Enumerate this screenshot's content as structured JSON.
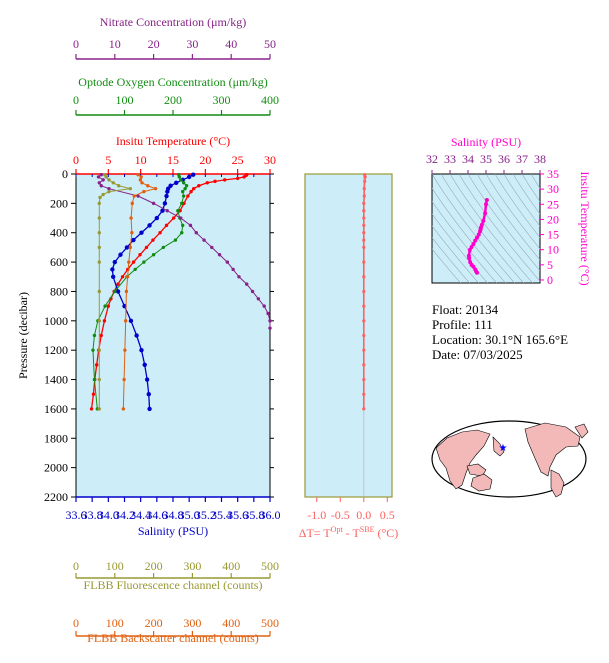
{
  "colors": {
    "plot_bg": "#cdeef9",
    "temperature": "#ff0000",
    "salinity": "#0000cc",
    "oxygen": "#118c11",
    "nitrate": "#882288",
    "fluorescence": "#999933",
    "backscatter": "#e06010",
    "delta_t": "#ff6060",
    "ts": "#ff00cc"
  },
  "chart_data": [
    {
      "id": "profiles",
      "type": "line",
      "ylabel": "Pressure (decibar)",
      "ylim": [
        0,
        2200
      ],
      "y_ticks": [
        0,
        200,
        400,
        600,
        800,
        1000,
        1200,
        1400,
        1600,
        1800,
        2000,
        2200
      ],
      "axes": {
        "nitrate": {
          "label": "Nitrate Concentration (μm/kg)",
          "range": [
            0,
            50
          ],
          "ticks": [
            0,
            10,
            20,
            30,
            40,
            50
          ]
        },
        "oxygen": {
          "label": "Optode Oxygen Concentration (μm/kg)",
          "range": [
            0,
            400
          ],
          "ticks": [
            0,
            100,
            200,
            300,
            400
          ]
        },
        "temperature": {
          "label": "Insitu Temperature (°C)",
          "range": [
            0,
            30
          ],
          "ticks": [
            0,
            5,
            10,
            15,
            20,
            25,
            30
          ]
        },
        "salinity": {
          "label": "Salinity (PSU)",
          "range": [
            33.6,
            36.0
          ],
          "ticks": [
            "33.6",
            "33.8",
            "34.0",
            "34.2",
            "34.4",
            "34.6",
            "34.8",
            "35.0",
            "35.2",
            "35.4",
            "35.6",
            "35.8",
            "36.0"
          ]
        },
        "fluorescence": {
          "label": "FLBB Fluorescence channel (counts)",
          "range": [
            0,
            500
          ],
          "ticks": [
            0,
            100,
            200,
            300,
            400,
            500
          ]
        },
        "backscatter": {
          "label": "FLBB Backscatter channel (counts)",
          "range": [
            0,
            500
          ],
          "ticks": [
            0,
            100,
            200,
            300,
            400,
            500
          ]
        }
      },
      "series": [
        {
          "name": "temperature",
          "p": [
            5,
            10,
            20,
            30,
            40,
            50,
            60,
            80,
            100,
            120,
            150,
            200,
            250,
            300,
            350,
            400,
            450,
            500,
            550,
            600,
            650,
            700,
            750,
            800,
            850,
            900,
            1000,
            1100,
            1200,
            1300,
            1400,
            1500,
            1600
          ],
          "values": [
            26.4,
            26.3,
            26.0,
            25.0,
            23.0,
            21.5,
            20.3,
            19.0,
            18.2,
            17.8,
            17.3,
            16.7,
            16.1,
            15.1,
            14.0,
            13.0,
            11.9,
            10.9,
            9.9,
            8.9,
            8.0,
            7.2,
            6.5,
            5.9,
            5.4,
            5.0,
            4.4,
            3.9,
            3.5,
            3.2,
            2.9,
            2.7,
            2.4
          ]
        },
        {
          "name": "salinity",
          "p": [
            5,
            20,
            40,
            60,
            80,
            100,
            120,
            150,
            200,
            250,
            300,
            350,
            400,
            450,
            500,
            550,
            600,
            650,
            700,
            800,
            900,
            1000,
            1100,
            1200,
            1300,
            1400,
            1500,
            1600
          ],
          "values": [
            35.05,
            35.0,
            34.92,
            34.84,
            34.77,
            34.74,
            34.73,
            34.72,
            34.7,
            34.67,
            34.6,
            34.51,
            34.41,
            34.31,
            34.23,
            34.15,
            34.08,
            34.05,
            34.06,
            34.12,
            34.2,
            34.28,
            34.35,
            34.41,
            34.45,
            34.48,
            34.5,
            34.51
          ]
        },
        {
          "name": "oxygen",
          "p": [
            5,
            20,
            40,
            60,
            80,
            100,
            120,
            150,
            200,
            250,
            300,
            350,
            400,
            450,
            500,
            550,
            600,
            650,
            700,
            800,
            900,
            1000,
            1100,
            1200,
            1400,
            1600
          ],
          "values": [
            212,
            213,
            216,
            222,
            228,
            225,
            220,
            222,
            218,
            210,
            214,
            220,
            218,
            205,
            180,
            160,
            140,
            122,
            105,
            80,
            60,
            45,
            38,
            35,
            38,
            44
          ]
        },
        {
          "name": "nitrate",
          "p": [
            5,
            20,
            40,
            60,
            80,
            100,
            150,
            200,
            250,
            300,
            350,
            400,
            450,
            500,
            550,
            600,
            650,
            700,
            750,
            800,
            850,
            900,
            950,
            1000,
            1050
          ],
          "values": [
            6.5,
            5.8,
            7.0,
            6.0,
            6.5,
            8.5,
            16.0,
            20.0,
            23.5,
            27.0,
            29.5,
            31.0,
            33.0,
            35.0,
            37.0,
            39.0,
            40.5,
            42.0,
            44.0,
            45.5,
            47.0,
            48.5,
            49.5,
            50.0,
            50.0
          ]
        },
        {
          "name": "fluorescence",
          "p": [
            5,
            20,
            40,
            60,
            80,
            100,
            120,
            140,
            160,
            200,
            300,
            400,
            500,
            600,
            800,
            1000,
            1200,
            1400,
            1600
          ],
          "values": [
            74,
            78,
            85,
            96,
            110,
            140,
            85,
            70,
            62,
            60,
            60,
            60,
            60,
            60,
            60,
            60,
            60,
            60,
            60
          ]
        },
        {
          "name": "backscatter",
          "p": [
            5,
            20,
            40,
            60,
            80,
            100,
            120,
            150,
            200,
            300,
            400,
            500,
            600,
            700,
            800,
            1000,
            1200,
            1400,
            1600
          ],
          "values": [
            160,
            168,
            166,
            170,
            185,
            205,
            175,
            150,
            145,
            142,
            144,
            140,
            136,
            133,
            130,
            128,
            126,
            124,
            122
          ]
        }
      ]
    },
    {
      "id": "delta_t",
      "type": "line",
      "xlabel_main": "ΔT= T",
      "xlabel_sup1": "Opt",
      "xlabel_mid": " - T",
      "xlabel_sup2": "SBE",
      "xlabel_unit": " (°C)",
      "xlim": [
        -1.25,
        0.6
      ],
      "x_ticks": [
        "-1.0",
        "-0.5",
        "0.0",
        "0.5"
      ],
      "x_tick_values": [
        -1.0,
        -0.5,
        0.0,
        0.5
      ],
      "p": [
        5,
        20,
        50,
        100,
        150,
        200,
        250,
        300,
        350,
        400,
        450,
        500,
        600,
        700,
        800,
        900,
        1000,
        1100,
        1200,
        1300,
        1400,
        1500,
        1600
      ],
      "values": [
        0.02,
        0.03,
        0.02,
        0.01,
        0.01,
        0.0,
        0.0,
        0.0,
        0.0,
        0.0,
        0.0,
        0.0,
        0.0,
        0.0,
        0.0,
        0.0,
        0.0,
        0.0,
        0.0,
        0.0,
        0.0,
        0.0,
        0.0
      ]
    },
    {
      "id": "ts",
      "type": "scatter",
      "xlabel": "Salinity (PSU)",
      "ylabel": "Insitu Temperature (°C)",
      "xlim": [
        32,
        38
      ],
      "ylim": [
        -1,
        35
      ],
      "x_ticks": [
        32,
        33,
        34,
        35,
        36,
        37,
        38
      ],
      "y_ticks": [
        0,
        5,
        10,
        15,
        20,
        25,
        30,
        35
      ],
      "salinity": [
        35.05,
        35.0,
        34.95,
        34.85,
        34.77,
        34.72,
        34.7,
        34.67,
        34.6,
        34.5,
        34.4,
        34.3,
        34.2,
        34.1,
        34.05,
        34.06,
        34.12,
        34.2,
        34.3,
        34.4,
        34.45,
        34.5
      ],
      "temperature": [
        26.4,
        25.0,
        22.0,
        19.5,
        18.2,
        17.3,
        16.7,
        16.1,
        15.0,
        14.0,
        13.0,
        11.9,
        10.9,
        9.9,
        8.0,
        7.2,
        5.9,
        5.0,
        4.4,
        3.5,
        2.9,
        2.4
      ]
    }
  ],
  "info": {
    "float": "Float:  20134",
    "profile": "Profile:  111",
    "location": "Location:  30.1°N  165.6°E",
    "date": "Date:  07/03/2025"
  },
  "map": {
    "marker_icon": "star-icon",
    "marker_lon": 165.6,
    "marker_lat": 30.1
  }
}
